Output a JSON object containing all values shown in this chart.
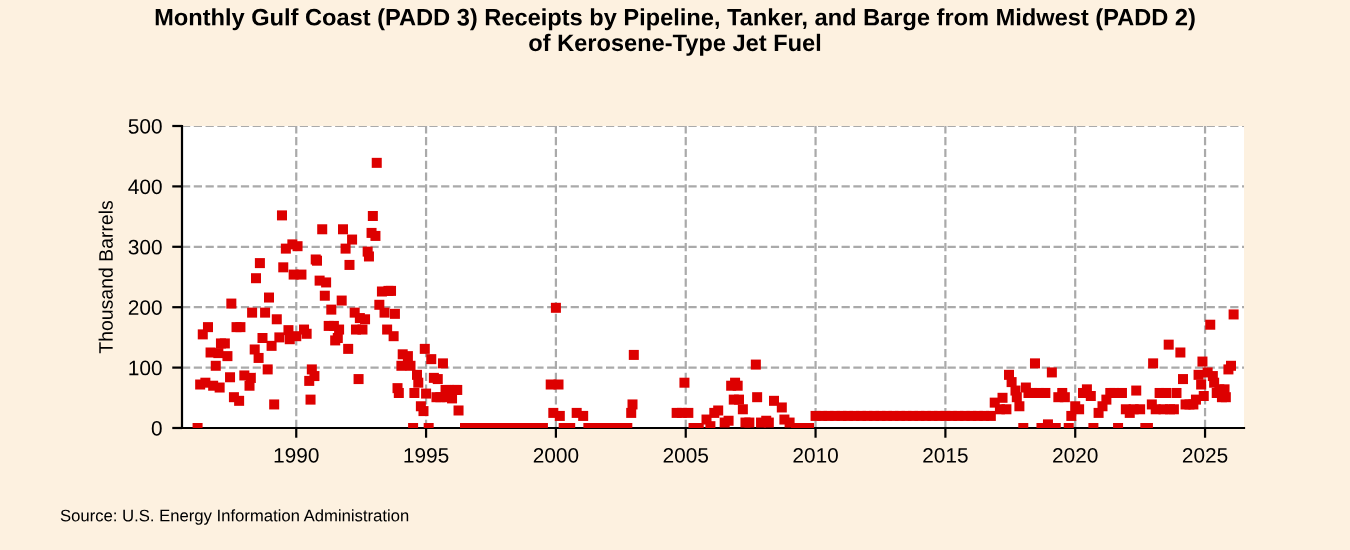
{
  "chart_data": {
    "type": "scatter",
    "title": "Monthly Gulf Coast (PADD 3) Receipts by Pipeline, Tanker, and Barge from Midwest (PADD 2)\nof Kerosene-Type Jet Fuel",
    "ylabel": "Thousand Barrels",
    "annotations": [
      "Source: U.S. Energy Information Administration"
    ],
    "xlim": [
      1985.6,
      2026.5
    ],
    "xticks": [
      1990,
      1995,
      2000,
      2005,
      2010,
      2015,
      2020,
      2025
    ],
    "ylim": [
      0,
      500
    ],
    "yticks": [
      0,
      100,
      200,
      300,
      400,
      500
    ],
    "grid": true,
    "marker": "square",
    "legend": false,
    "series": [
      {
        "color": "#dd0000",
        "x": [
          1986.2,
          1986.3,
          1986.4,
          1986.5,
          1986.6,
          1986.7,
          1986.8,
          1986.9,
          1987.0,
          1987.05,
          1987.1,
          1987.25,
          1987.35,
          1987.45,
          1987.5,
          1987.6,
          1987.7,
          1987.8,
          1987.85,
          1988.0,
          1988.2,
          1988.25,
          1988.3,
          1988.4,
          1988.45,
          1988.55,
          1988.6,
          1988.7,
          1988.8,
          1988.9,
          1988.95,
          1989.05,
          1989.15,
          1989.25,
          1989.35,
          1989.45,
          1989.5,
          1989.6,
          1989.7,
          1989.75,
          1989.85,
          1989.9,
          1990.0,
          1990.05,
          1990.2,
          1990.3,
          1990.4,
          1990.5,
          1990.55,
          1990.6,
          1990.7,
          1990.75,
          1990.8,
          1990.9,
          1991.0,
          1991.1,
          1991.15,
          1991.25,
          1991.35,
          1991.45,
          1991.5,
          1991.6,
          1991.65,
          1991.75,
          1991.8,
          1991.9,
          1992.0,
          1992.05,
          1992.15,
          1992.25,
          1992.3,
          1992.4,
          1992.45,
          1992.55,
          1992.65,
          1992.75,
          1992.8,
          1992.9,
          1992.95,
          1993.05,
          1993.1,
          1993.2,
          1993.3,
          1993.4,
          1993.5,
          1993.55,
          1993.65,
          1993.75,
          1993.8,
          1993.9,
          1993.95,
          1994.05,
          1994.1,
          1994.3,
          1994.4,
          1994.5,
          1994.55,
          1994.65,
          1994.7,
          1994.8,
          1994.9,
          1994.95,
          1995.0,
          1995.1,
          1995.2,
          1995.3,
          1995.4,
          1995.45,
          1995.55,
          1995.65,
          1995.75,
          1995.8,
          1995.9,
          1996.0,
          1996.1,
          1996.2,
          1996.25,
          1996.5,
          1996.75,
          1997.0,
          1997.25,
          1997.5,
          1997.75,
          1998.0,
          1998.25,
          1998.5,
          1998.75,
          1999.0,
          1999.25,
          1999.5,
          1999.8,
          1999.9,
          2000.0,
          2000.1,
          2000.15,
          2000.3,
          2000.55,
          2000.8,
          2001.05,
          2001.25,
          2001.5,
          2001.75,
          2002.0,
          2002.25,
          2002.5,
          2002.75,
          2002.9,
          2002.95,
          2003.0,
          2004.65,
          2004.85,
          2004.95,
          2005.1,
          2005.3,
          2005.5,
          2005.8,
          2005.95,
          2006.1,
          2006.25,
          2006.5,
          2006.65,
          2006.75,
          2006.85,
          2006.9,
          2007.0,
          2007.05,
          2007.2,
          2007.3,
          2007.45,
          2007.7,
          2007.75,
          2007.9,
          2008.1,
          2008.2,
          2008.4,
          2008.7,
          2008.8,
          2009.0,
          2009.25,
          2009.5,
          2009.75,
          2010.0,
          2010.25,
          2010.5,
          2010.75,
          2011.0,
          2011.25,
          2011.5,
          2011.75,
          2012.0,
          2012.25,
          2012.5,
          2012.75,
          2013.0,
          2013.25,
          2013.5,
          2013.75,
          2014.0,
          2014.25,
          2014.5,
          2014.75,
          2015.0,
          2015.25,
          2015.5,
          2015.75,
          2016.0,
          2016.25,
          2016.5,
          2016.75,
          2016.9,
          2017.1,
          2017.2,
          2017.35,
          2017.45,
          2017.55,
          2017.7,
          2017.75,
          2017.85,
          2018.0,
          2018.1,
          2018.2,
          2018.35,
          2018.45,
          2018.6,
          2018.7,
          2018.85,
          2018.95,
          2019.1,
          2019.25,
          2019.35,
          2019.5,
          2019.6,
          2019.75,
          2019.85,
          2020.0,
          2020.15,
          2020.3,
          2020.45,
          2020.6,
          2020.7,
          2020.9,
          2021.05,
          2021.2,
          2021.35,
          2021.5,
          2021.65,
          2021.8,
          2021.95,
          2022.1,
          2022.25,
          2022.35,
          2022.5,
          2022.7,
          2022.8,
          2022.95,
          2023.0,
          2023.1,
          2023.25,
          2023.4,
          2023.5,
          2023.6,
          2023.65,
          2023.8,
          2023.9,
          2024.05,
          2024.15,
          2024.25,
          2024.4,
          2024.55,
          2024.65,
          2024.75,
          2024.85,
          2024.9,
          2024.95,
          2025.1,
          2025.2,
          2025.3,
          2025.35,
          2025.45,
          2025.55,
          2025.65,
          2025.75,
          2025.8,
          2025.9,
          2026.0,
          2026.1
        ],
        "values": [
          0,
          72,
          155,
          75,
          167,
          125,
          70,
          103,
          124,
          67,
          140,
          140,
          119,
          84,
          206,
          51,
          167,
          45,
          167,
          87,
          70,
          83,
          191,
          130,
          248,
          116,
          273,
          149,
          191,
          97,
          216,
          136,
          39,
          180,
          150,
          352,
          266,
          297,
          162,
          147,
          304,
          254,
          152,
          301,
          254,
          163,
          156,
          78,
          47,
          97,
          86,
          279,
          277,
          244,
          329,
          219,
          241,
          169,
          196,
          169,
          145,
          149,
          163,
          211,
          329,
          297,
          131,
          270,
          312,
          191,
          163,
          81,
          182,
          163,
          180,
          292,
          284,
          323,
          351,
          318,
          439,
          204,
          226,
          191,
          163,
          227,
          227,
          152,
          189,
          66,
          58,
          103,
          122,
          119,
          103,
          0,
          58,
          88,
          75,
          36,
          28,
          131,
          57,
          0,
          114,
          83,
          51,
          81,
          51,
          107,
          63,
          51,
          63,
          49,
          63,
          63,
          29,
          0,
          0,
          0,
          0,
          0,
          0,
          0,
          0,
          0,
          0,
          0,
          0,
          0,
          72,
          25,
          199,
          72,
          20,
          0,
          0,
          25,
          20,
          0,
          0,
          0,
          0,
          0,
          0,
          0,
          25,
          39,
          121,
          25,
          25,
          75,
          25,
          0,
          0,
          14,
          3,
          25,
          29,
          9,
          12,
          70,
          47,
          75,
          70,
          47,
          31,
          9,
          9,
          105,
          51,
          9,
          12,
          9,
          45,
          34,
          14,
          9,
          0,
          0,
          0,
          20,
          20,
          20,
          20,
          20,
          20,
          20,
          20,
          20,
          20,
          20,
          20,
          20,
          20,
          20,
          20,
          20,
          20,
          20,
          20,
          20,
          20,
          20,
          20,
          20,
          20,
          20,
          20,
          42,
          31,
          50,
          31,
          88,
          76,
          62,
          51,
          36,
          0,
          67,
          58,
          58,
          107,
          58,
          0,
          58,
          6,
          92,
          0,
          51,
          58,
          51,
          0,
          20,
          36,
          31,
          58,
          64,
          53,
          0,
          25,
          36,
          47,
          58,
          58,
          0,
          58,
          31,
          25,
          31,
          62,
          31,
          0,
          0,
          39,
          107,
          31,
          58,
          31,
          58,
          138,
          31,
          31,
          58,
          125,
          81,
          39,
          39,
          39,
          47,
          88,
          72,
          110,
          53,
          92,
          171,
          86,
          75,
          58,
          64,
          51,
          64,
          51,
          97,
          103,
          188
        ]
      }
    ]
  }
}
